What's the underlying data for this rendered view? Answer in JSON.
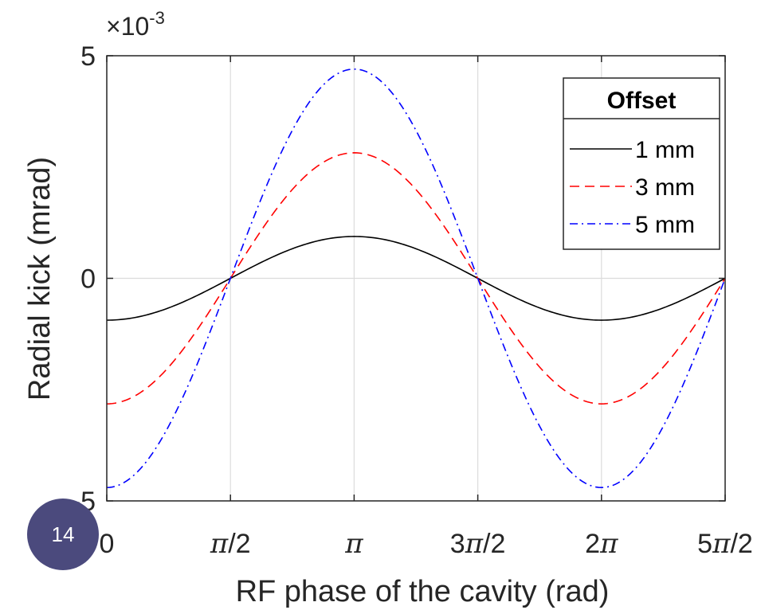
{
  "chart_data": {
    "type": "line",
    "xlabel": "RF phase of the cavity (rad)",
    "ylabel": "Radial kick (mrad)",
    "y_exponent_base": "×10",
    "y_exponent_power": "-3",
    "x_ticks": [
      {
        "value": 0,
        "label": "0"
      },
      {
        "value": 1.5708,
        "label": "π/2"
      },
      {
        "value": 3.1416,
        "label": "π"
      },
      {
        "value": 4.7124,
        "label": "3π/2"
      },
      {
        "value": 6.2832,
        "label": "2π"
      },
      {
        "value": 7.854,
        "label": "5π/2"
      }
    ],
    "y_ticks": [
      {
        "value": -5,
        "label": "-5"
      },
      {
        "value": 0,
        "label": "0"
      },
      {
        "value": 5,
        "label": "5"
      }
    ],
    "xlim": [
      0,
      7.854
    ],
    "ylim": [
      -5,
      5
    ],
    "grid": true,
    "legend": {
      "title": "Offset",
      "position": "top-right"
    },
    "series": [
      {
        "name": "1 mm",
        "amplitude": 0.94,
        "color": "#000000",
        "style": "solid",
        "x": [
          0,
          0.785,
          1.571,
          2.356,
          3.142,
          3.927,
          4.712,
          5.498,
          6.283,
          7.069,
          7.854
        ],
        "y": [
          -0.94,
          -0.66,
          0,
          0.66,
          0.94,
          0.66,
          0,
          -0.66,
          -0.94,
          -0.66,
          0
        ]
      },
      {
        "name": "3 mm",
        "amplitude": 2.82,
        "color": "#ff0000",
        "style": "dashed",
        "x": [
          0,
          0.785,
          1.571,
          2.356,
          3.142,
          3.927,
          4.712,
          5.498,
          6.283,
          7.069,
          7.854
        ],
        "y": [
          -2.82,
          -1.99,
          0,
          1.99,
          2.82,
          1.99,
          0,
          -1.99,
          -2.82,
          -1.99,
          0
        ]
      },
      {
        "name": "5 mm",
        "amplitude": 4.7,
        "color": "#0000ff",
        "style": "dashdot",
        "x": [
          0,
          0.785,
          1.571,
          2.356,
          3.142,
          3.927,
          4.712,
          5.498,
          6.283,
          7.069,
          7.854
        ],
        "y": [
          -4.7,
          -3.32,
          0,
          3.32,
          4.7,
          3.32,
          0,
          -3.32,
          -4.7,
          -3.32,
          0
        ]
      }
    ]
  },
  "page_number": "14"
}
